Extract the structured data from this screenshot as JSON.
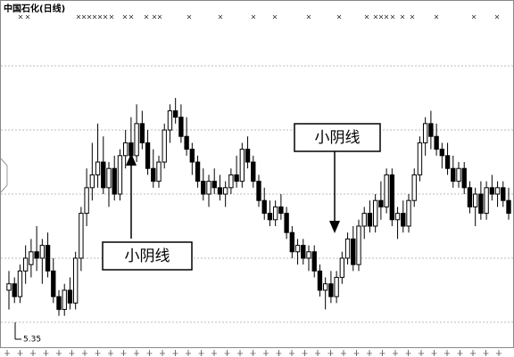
{
  "chart_data": {
    "type": "candlestick",
    "title": "中国石化(日线)",
    "ylim": [
      5.308,
      5.829
    ],
    "grid_values": [
      5.34,
      5.44,
      5.54,
      5.64,
      5.74
    ],
    "grid": true,
    "up_color": "#ffffff",
    "down_color": "#000000",
    "low_label": "5.35",
    "annotations": [
      "小阴线",
      "小阴线"
    ],
    "ohlc": [
      [
        5.39,
        5.42,
        5.36,
        5.4
      ],
      [
        5.4,
        5.41,
        5.37,
        5.38
      ],
      [
        5.38,
        5.43,
        5.37,
        5.42
      ],
      [
        5.42,
        5.46,
        5.4,
        5.44
      ],
      [
        5.43,
        5.47,
        5.41,
        5.45
      ],
      [
        5.45,
        5.49,
        5.42,
        5.44
      ],
      [
        5.44,
        5.47,
        5.4,
        5.46
      ],
      [
        5.46,
        5.48,
        5.41,
        5.42
      ],
      [
        5.42,
        5.44,
        5.37,
        5.38
      ],
      [
        5.38,
        5.39,
        5.35,
        5.36
      ],
      [
        5.36,
        5.4,
        5.35,
        5.39
      ],
      [
        5.39,
        5.41,
        5.36,
        5.37
      ],
      [
        5.37,
        5.45,
        5.36,
        5.44
      ],
      [
        5.44,
        5.52,
        5.42,
        5.51
      ],
      [
        5.51,
        5.58,
        5.49,
        5.55
      ],
      [
        5.55,
        5.62,
        5.53,
        5.57
      ],
      [
        5.57,
        5.65,
        5.55,
        5.59
      ],
      [
        5.59,
        5.63,
        5.54,
        5.55
      ],
      [
        5.55,
        5.59,
        5.52,
        5.58
      ],
      [
        5.58,
        5.6,
        5.53,
        5.54
      ],
      [
        5.54,
        5.61,
        5.53,
        5.6
      ],
      [
        5.6,
        5.64,
        5.58,
        5.62
      ],
      [
        5.62,
        5.66,
        5.59,
        5.6
      ],
      [
        5.6,
        5.68,
        5.59,
        5.65
      ],
      [
        5.65,
        5.67,
        5.61,
        5.62
      ],
      [
        5.62,
        5.64,
        5.57,
        5.58
      ],
      [
        5.58,
        5.61,
        5.55,
        5.56
      ],
      [
        5.56,
        5.6,
        5.55,
        5.59
      ],
      [
        5.59,
        5.65,
        5.58,
        5.64
      ],
      [
        5.64,
        5.68,
        5.62,
        5.67
      ],
      [
        5.67,
        5.69,
        5.65,
        5.66
      ],
      [
        5.66,
        5.68,
        5.62,
        5.63
      ],
      [
        5.63,
        5.66,
        5.6,
        5.61
      ],
      [
        5.61,
        5.62,
        5.57,
        5.59
      ],
      [
        5.59,
        5.6,
        5.55,
        5.56
      ],
      [
        5.56,
        5.58,
        5.53,
        5.54
      ],
      [
        5.54,
        5.57,
        5.52,
        5.56
      ],
      [
        5.56,
        5.58,
        5.54,
        5.55
      ],
      [
        5.55,
        5.57,
        5.53,
        5.54
      ],
      [
        5.54,
        5.56,
        5.52,
        5.55
      ],
      [
        5.55,
        5.58,
        5.54,
        5.57
      ],
      [
        5.57,
        5.6,
        5.55,
        5.56
      ],
      [
        5.56,
        5.62,
        5.55,
        5.61
      ],
      [
        5.61,
        5.63,
        5.58,
        5.59
      ],
      [
        5.59,
        5.6,
        5.55,
        5.56
      ],
      [
        5.56,
        5.57,
        5.52,
        5.53
      ],
      [
        5.53,
        5.55,
        5.5,
        5.51
      ],
      [
        5.51,
        5.53,
        5.49,
        5.5
      ],
      [
        5.5,
        5.53,
        5.49,
        5.52
      ],
      [
        5.52,
        5.54,
        5.5,
        5.51
      ],
      [
        5.51,
        5.52,
        5.47,
        5.48
      ],
      [
        5.48,
        5.49,
        5.44,
        5.45
      ],
      [
        5.45,
        5.47,
        5.43,
        5.46
      ],
      [
        5.46,
        5.47,
        5.43,
        5.44
      ],
      [
        5.44,
        5.46,
        5.42,
        5.45
      ],
      [
        5.45,
        5.46,
        5.41,
        5.42
      ],
      [
        5.42,
        5.43,
        5.38,
        5.39
      ],
      [
        5.39,
        5.41,
        5.36,
        5.4
      ],
      [
        5.4,
        5.42,
        5.37,
        5.38
      ],
      [
        5.38,
        5.42,
        5.37,
        5.41
      ],
      [
        5.41,
        5.45,
        5.4,
        5.44
      ],
      [
        5.44,
        5.48,
        5.43,
        5.47
      ],
      [
        5.47,
        5.49,
        5.42,
        5.43
      ],
      [
        5.43,
        5.5,
        5.42,
        5.49
      ],
      [
        5.49,
        5.52,
        5.47,
        5.51
      ],
      [
        5.51,
        5.53,
        5.48,
        5.49
      ],
      [
        5.49,
        5.54,
        5.48,
        5.53
      ],
      [
        5.53,
        5.56,
        5.5,
        5.52
      ],
      [
        5.52,
        5.58,
        5.51,
        5.57
      ],
      [
        5.57,
        5.58,
        5.49,
        5.5
      ],
      [
        5.5,
        5.52,
        5.47,
        5.51
      ],
      [
        5.51,
        5.53,
        5.48,
        5.49
      ],
      [
        5.49,
        5.54,
        5.48,
        5.53
      ],
      [
        5.53,
        5.58,
        5.52,
        5.57
      ],
      [
        5.57,
        5.63,
        5.56,
        5.62
      ],
      [
        5.62,
        5.66,
        5.6,
        5.65
      ],
      [
        5.65,
        5.67,
        5.61,
        5.63
      ],
      [
        5.63,
        5.65,
        5.6,
        5.61
      ],
      [
        5.61,
        5.62,
        5.58,
        5.6
      ],
      [
        5.6,
        5.62,
        5.57,
        5.58
      ],
      [
        5.58,
        5.6,
        5.55,
        5.56
      ],
      [
        5.56,
        5.59,
        5.55,
        5.58
      ],
      [
        5.58,
        5.59,
        5.54,
        5.55
      ],
      [
        5.55,
        5.56,
        5.51,
        5.52
      ],
      [
        5.52,
        5.55,
        5.49,
        5.54
      ],
      [
        5.54,
        5.56,
        5.5,
        5.51
      ],
      [
        5.51,
        5.56,
        5.5,
        5.55
      ],
      [
        5.55,
        5.57,
        5.53,
        5.54
      ],
      [
        5.54,
        5.56,
        5.52,
        5.55
      ],
      [
        5.55,
        5.56,
        5.52,
        5.53
      ],
      [
        5.53,
        5.55,
        5.5,
        5.51
      ]
    ]
  }
}
